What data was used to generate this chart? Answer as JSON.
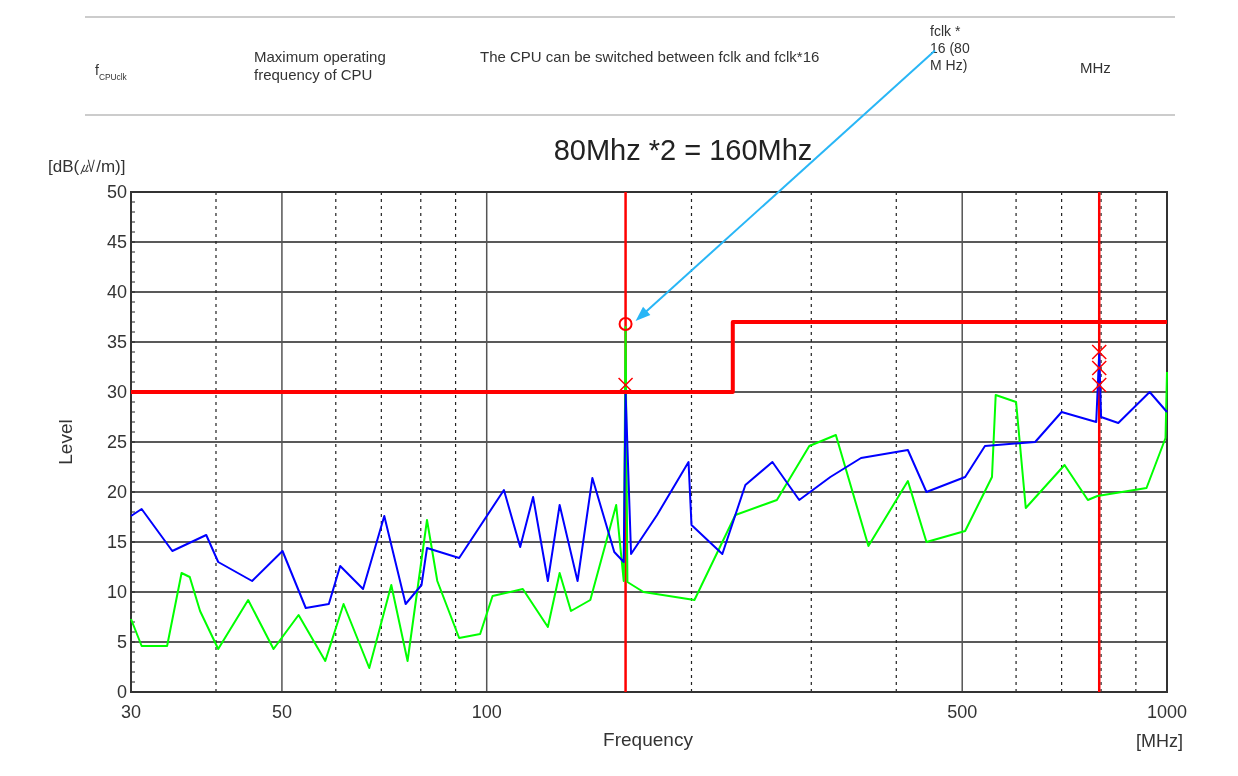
{
  "chart_data": {
    "type": "line",
    "title": "80Mhz *2 = 160Mhz",
    "xlabel": "Frequency",
    "ylabel": "Level",
    "log": "x",
    "xlim": [
      30,
      1000
    ],
    "xticks": [
      30,
      {
        "value": 40,
        "label": null
      },
      50,
      {
        "value": 60,
        "label": null
      },
      {
        "value": 70,
        "label": null
      },
      {
        "value": 80,
        "label": null
      },
      {
        "value": 90,
        "label": null
      },
      100,
      {
        "value": 200,
        "label": null
      },
      {
        "value": 300,
        "label": null
      },
      {
        "value": 400,
        "label": null
      },
      500,
      {
        "value": 600,
        "label": null
      },
      {
        "value": 700,
        "label": null
      },
      {
        "value": 800,
        "label": null
      },
      {
        "value": 900,
        "label": null
      },
      1000
    ],
    "ylim": [
      0,
      50
    ],
    "yticks": [
      0,
      5,
      10,
      15,
      20,
      25,
      30,
      35,
      40,
      45,
      50
    ],
    "grid": true,
    "annotations": [
      "[dB(㎶/m)]",
      "[MHz]",
      "f$_{CPUclk}$",
      "Maximum operating frequency of CPU",
      "The CPU can be switched between fclk and fclk*16",
      "fclk * 16 (80 M Hz)",
      "MHz"
    ],
    "ref_lines": [
      {
        "axis": "x",
        "value": 160,
        "color": "#ff0000"
      },
      {
        "axis": "x",
        "value": 795,
        "color": "#ff0000"
      }
    ],
    "series": [
      {
        "color": "#00ff00",
        "x": [
          30,
          31.1,
          33.9,
          35.6,
          36.6,
          37.9,
          40.3,
          44.6,
          48.6,
          52.9,
          57.9,
          61.6,
          67.2,
          72.4,
          76.5,
          81.7,
          84.6,
          91.1,
          97.8,
          102,
          113,
          123,
          128,
          133,
          142,
          155,
          159,
          160,
          161,
          170,
          202,
          232,
          267,
          298,
          326,
          364,
          416,
          443,
          505,
          553,
          560,
          600,
          620,
          707,
          765,
          790,
          933,
          995,
          1000
        ],
        "values": [
          7.3,
          4.6,
          4.6,
          11.9,
          11.5,
          8.1,
          4.3,
          9.2,
          4.3,
          7.7,
          3.1,
          8.8,
          2.4,
          10.7,
          3.1,
          17.2,
          11.1,
          5.4,
          5.8,
          9.6,
          10.3,
          6.5,
          11.9,
          8.1,
          9.2,
          18.7,
          11.1,
          36.5,
          11,
          10,
          9.2,
          17.7,
          19.2,
          24.6,
          25.7,
          14.6,
          21.1,
          15,
          16.1,
          21.5,
          29.7,
          29,
          18.4,
          22.7,
          19.2,
          19.6,
          20.4,
          25.4,
          32
        ]
      },
      {
        "color": "#0000ff",
        "x": [
          30,
          31.1,
          34.5,
          38.7,
          40.3,
          45.2,
          50.1,
          54.2,
          58.6,
          60.9,
          65.8,
          70.7,
          76,
          80.2,
          81.7,
          91.1,
          106,
          112,
          117,
          123,
          128,
          136,
          143,
          154,
          159,
          160,
          163,
          178,
          198,
          200,
          222,
          240,
          263,
          288,
          320,
          355,
          416,
          443,
          505,
          540,
          640,
          700,
          787,
          795,
          800,
          848,
          943,
          1000
        ],
        "values": [
          17.6,
          18.3,
          14.1,
          15.7,
          13,
          11.1,
          14.1,
          8.4,
          8.8,
          12.6,
          10.3,
          17.6,
          8.8,
          10.7,
          14.4,
          13.4,
          20.2,
          14.5,
          19.5,
          11.1,
          18.7,
          11.1,
          21.4,
          14,
          13,
          30,
          13.8,
          17.7,
          23,
          16.7,
          13.8,
          20.7,
          23,
          19.2,
          21.5,
          23.4,
          24.2,
          20,
          21.5,
          24.6,
          25,
          28,
          27,
          33.9,
          27.5,
          26.9,
          30,
          28
        ]
      },
      {
        "type": "step",
        "color": "#ff0000",
        "x": [
          30,
          230,
          1000
        ],
        "values": [
          30,
          37,
          37
        ]
      },
      {
        "type": "scatter",
        "marker": "circle",
        "color": "#ff0000",
        "x": [
          160
        ],
        "values": [
          36.8
        ]
      },
      {
        "type": "scatter",
        "marker": "cross",
        "color": "#ff0000",
        "x": [
          160,
          795,
          795,
          795
        ],
        "values": [
          30.7,
          34,
          32.4,
          30.7
        ]
      }
    ]
  }
}
